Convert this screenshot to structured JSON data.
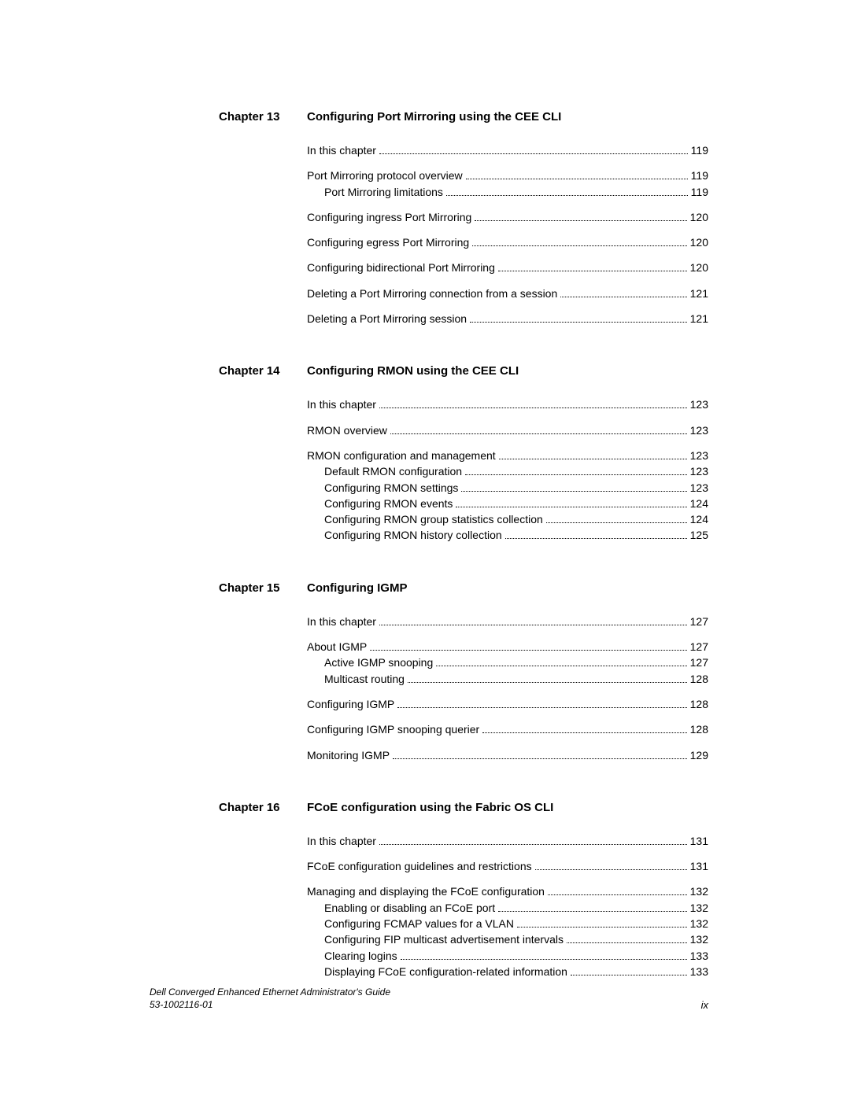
{
  "chapters": [
    {
      "label": "Chapter 13",
      "title": "Configuring Port Mirroring using the CEE CLI",
      "groups": [
        [
          {
            "text": "In this chapter",
            "page": "119",
            "indent": 0
          }
        ],
        [
          {
            "text": "Port Mirroring protocol overview",
            "page": "119",
            "indent": 0
          },
          {
            "text": "Port Mirroring limitations",
            "page": "119",
            "indent": 1
          }
        ],
        [
          {
            "text": "Configuring ingress Port Mirroring",
            "page": "120",
            "indent": 0
          }
        ],
        [
          {
            "text": "Configuring egress Port Mirroring",
            "page": "120",
            "indent": 0
          }
        ],
        [
          {
            "text": "Configuring bidirectional Port Mirroring",
            "page": "120",
            "indent": 0
          }
        ],
        [
          {
            "text": "Deleting a Port Mirroring connection from a session",
            "page": "121",
            "indent": 0
          }
        ],
        [
          {
            "text": "Deleting a Port Mirroring session",
            "page": "121",
            "indent": 0
          }
        ]
      ]
    },
    {
      "label": "Chapter 14",
      "title": "Configuring RMON using the CEE CLI",
      "groups": [
        [
          {
            "text": "In this chapter",
            "page": "123",
            "indent": 0
          }
        ],
        [
          {
            "text": "RMON overview",
            "page": "123",
            "indent": 0
          }
        ],
        [
          {
            "text": "RMON configuration and management",
            "page": "123",
            "indent": 0
          },
          {
            "text": "Default RMON configuration",
            "page": "123",
            "indent": 1
          },
          {
            "text": "Configuring RMON settings",
            "page": "123",
            "indent": 1
          },
          {
            "text": "Configuring RMON events",
            "page": "124",
            "indent": 1
          },
          {
            "text": "Configuring RMON group statistics collection",
            "page": "124",
            "indent": 1
          },
          {
            "text": "Configuring RMON history collection",
            "page": "125",
            "indent": 1
          }
        ]
      ]
    },
    {
      "label": "Chapter 15",
      "title": "Configuring IGMP",
      "groups": [
        [
          {
            "text": "In this chapter",
            "page": "127",
            "indent": 0
          }
        ],
        [
          {
            "text": "About IGMP",
            "page": "127",
            "indent": 0
          },
          {
            "text": "Active IGMP snooping",
            "page": "127",
            "indent": 1
          },
          {
            "text": "Multicast routing",
            "page": "128",
            "indent": 1
          }
        ],
        [
          {
            "text": "Configuring IGMP",
            "page": "128",
            "indent": 0
          }
        ],
        [
          {
            "text": "Configuring IGMP snooping querier",
            "page": "128",
            "indent": 0
          }
        ],
        [
          {
            "text": "Monitoring IGMP",
            "page": "129",
            "indent": 0
          }
        ]
      ]
    },
    {
      "label": "Chapter 16",
      "title": "FCoE configuration using the Fabric OS CLI",
      "groups": [
        [
          {
            "text": "In this chapter",
            "page": "131",
            "indent": 0
          }
        ],
        [
          {
            "text": "FCoE configuration guidelines and restrictions",
            "page": "131",
            "indent": 0
          }
        ],
        [
          {
            "text": "Managing and displaying the FCoE configuration",
            "page": "132",
            "indent": 0
          },
          {
            "text": "Enabling or disabling an FCoE port",
            "page": "132",
            "indent": 1
          },
          {
            "text": "Configuring FCMAP values for a VLAN",
            "page": "132",
            "indent": 1
          },
          {
            "text": "Configuring FIP multicast advertisement intervals",
            "page": "132",
            "indent": 1
          },
          {
            "text": "Clearing logins",
            "page": "133",
            "indent": 1
          },
          {
            "text": "Displaying FCoE configuration-related information",
            "page": "133",
            "indent": 1
          }
        ]
      ]
    }
  ],
  "footer": {
    "line1": "Dell Converged Enhanced Ethernet Administrator's Guide",
    "line2": "53-1002116-01",
    "pagenum": "ix"
  }
}
